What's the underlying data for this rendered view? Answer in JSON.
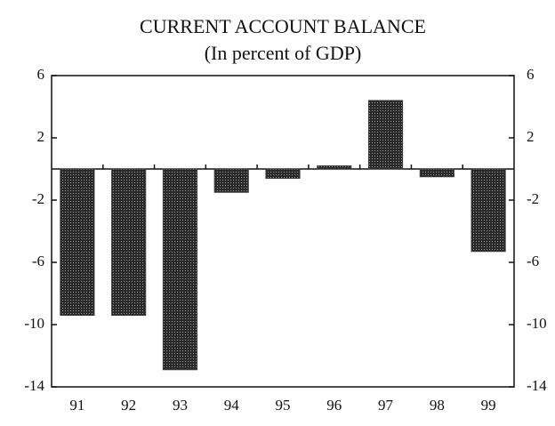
{
  "chart_data": {
    "type": "bar",
    "title": "CURRENT ACCOUNT BALANCE",
    "subtitle": "(In percent of GDP)",
    "categories": [
      "91",
      "92",
      "93",
      "94",
      "95",
      "96",
      "97",
      "98",
      "99"
    ],
    "values": [
      -9.4,
      -9.4,
      -12.9,
      -1.5,
      -0.6,
      0.2,
      4.4,
      -0.5,
      -5.3
    ],
    "color": "#3a3a3a",
    "ylim": [
      -14,
      6
    ],
    "yticks": [
      6,
      2,
      -2,
      -6,
      -10,
      -14
    ],
    "y2lim": [
      -14,
      6
    ],
    "y2ticks": [
      6,
      2,
      -2,
      -6,
      -10,
      -14
    ]
  }
}
